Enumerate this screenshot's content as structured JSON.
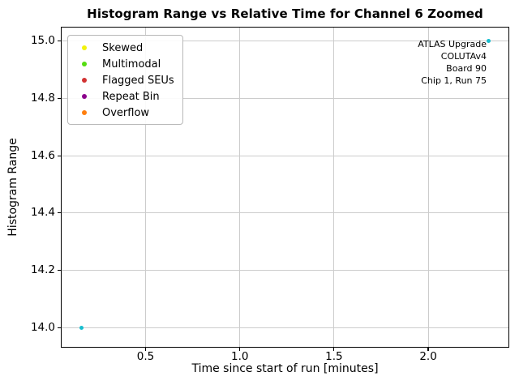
{
  "chart_data": {
    "type": "scatter",
    "title": "Histogram Range vs Relative Time for Channel 6 Zoomed",
    "xlabel": "Time since start of run [minutes]",
    "ylabel": "Histogram Range",
    "xlim": [
      0.05,
      2.43
    ],
    "ylim": [
      13.93,
      15.05
    ],
    "grid": true,
    "xticks": [
      {
        "value": 0.5,
        "label": "0.5"
      },
      {
        "value": 1.0,
        "label": "1.0"
      },
      {
        "value": 1.5,
        "label": "1.5"
      },
      {
        "value": 2.0,
        "label": "2.0"
      }
    ],
    "yticks": [
      {
        "value": 14.0,
        "label": "14.0"
      },
      {
        "value": 14.2,
        "label": "14.2"
      },
      {
        "value": 14.4,
        "label": "14.4"
      },
      {
        "value": 14.6,
        "label": "14.6"
      },
      {
        "value": 14.8,
        "label": "14.8"
      },
      {
        "value": 15.0,
        "label": "15.0"
      }
    ],
    "points": [
      {
        "x": 0.16,
        "y": 14.0
      },
      {
        "x": 2.32,
        "y": 15.0
      }
    ],
    "point_color": "#17becf",
    "legend": {
      "position": "upper left",
      "entries": [
        {
          "label": "Skewed",
          "color": "#f2f20c"
        },
        {
          "label": "Multimodal",
          "color": "#55dd11"
        },
        {
          "label": "Flagged SEUs",
          "color": "#d23232"
        },
        {
          "label": "Repeat Bin",
          "color": "#8b008b"
        },
        {
          "label": "Overflow",
          "color": "#ff7f0e"
        }
      ]
    },
    "annotation": {
      "lines": [
        "ATLAS Upgrade",
        "COLUTAv4",
        "Board 90",
        "Chip 1, Run 75"
      ]
    },
    "colors": {
      "grid": "#cccccc",
      "spine": "#000000",
      "background": "#ffffff"
    }
  }
}
